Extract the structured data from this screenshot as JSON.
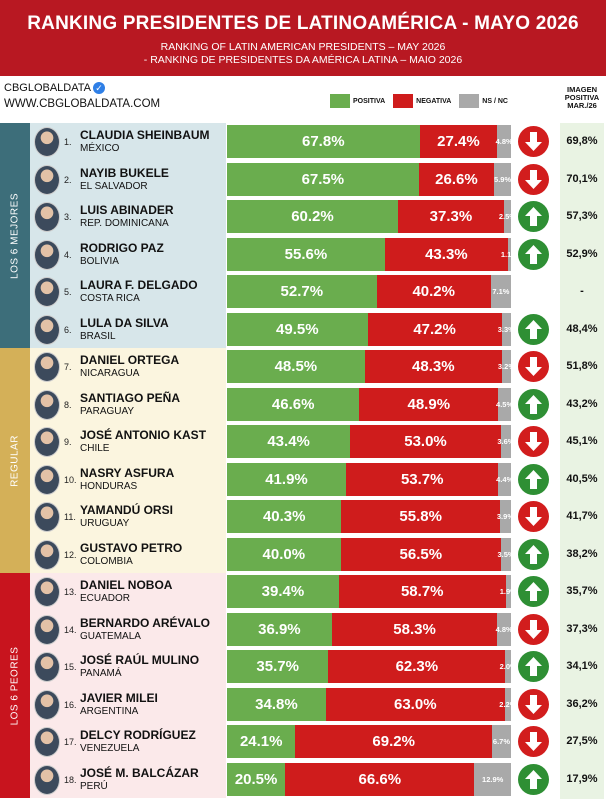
{
  "header": {
    "title": "RANKING PRESIDENTES DE LATINOAMÉRICA - MAYO 2026",
    "subtitle_en": "RANKING OF LATIN AMERICAN PRESIDENTS – MAY 2026",
    "subtitle_pt": "- RANKING DE PRESIDENTES DA AMÉRICA LATINA – MAIO 2026"
  },
  "brand": {
    "handle": "CBGLOBALDATA",
    "url": "WWW.CBGLOBALDATA.COM"
  },
  "legend": {
    "positive": "POSITIVA",
    "negative": "NEGATIVA",
    "ns": "NS / NC"
  },
  "image_column_header": [
    "IMAGEN",
    "POSITIVA",
    "MAR./26"
  ],
  "groups": [
    {
      "label": "LOS 6 MEJORES",
      "color": "#3d6e7a",
      "bg": "#d7e6ea"
    },
    {
      "label": "REGULAR",
      "color": "#d4b058",
      "bg": "#fbf5df"
    },
    {
      "label": "LOS 6 PEORES",
      "color": "#c8141e",
      "bg": "#fbe9ea"
    }
  ],
  "colors": {
    "positive": "#6aad4e",
    "negative": "#cf1c1c",
    "ns": "#a9a9a9",
    "up": "#2e8f34",
    "down": "#d21d1d"
  },
  "chart_data": {
    "type": "bar",
    "stacked": true,
    "orientation": "horizontal",
    "series_names": [
      "POSITIVA",
      "NEGATIVA",
      "NS / NC"
    ],
    "rows": [
      {
        "rank": "1.",
        "name": "CLAUDIA SHEINBAUM",
        "country": "MÉXICO",
        "positive": 67.8,
        "negative": 27.4,
        "ns": 4.8,
        "pos_label": "67.8%",
        "neg_label": "27.4%",
        "ns_label": "4.8%",
        "trend": "down",
        "prev": "69,8%"
      },
      {
        "rank": "2.",
        "name": "NAYIB BUKELE",
        "country": "EL SALVADOR",
        "positive": 67.5,
        "negative": 26.6,
        "ns": 5.9,
        "pos_label": "67.5%",
        "neg_label": "26.6%",
        "ns_label": "5.9%",
        "trend": "down",
        "prev": "70,1%"
      },
      {
        "rank": "3.",
        "name": "LUIS ABINADER",
        "country": "REP. DOMINICANA",
        "positive": 60.2,
        "negative": 37.3,
        "ns": 2.5,
        "pos_label": "60.2%",
        "neg_label": "37.3%",
        "ns_label": "2.5%",
        "trend": "up",
        "prev": "57,3%"
      },
      {
        "rank": "4.",
        "name": "RODRIGO PAZ",
        "country": "BOLIVIA",
        "positive": 55.6,
        "negative": 43.3,
        "ns": 1.1,
        "pos_label": "55.6%",
        "neg_label": "43.3%",
        "ns_label": "1.1%",
        "trend": "up",
        "prev": "52,9%"
      },
      {
        "rank": "5.",
        "name": "LAURA F. DELGADO",
        "country": "COSTA RICA",
        "positive": 52.7,
        "negative": 40.2,
        "ns": 7.1,
        "pos_label": "52.7%",
        "neg_label": "40.2%",
        "ns_label": "7.1%",
        "trend": "none",
        "prev": "-"
      },
      {
        "rank": "6.",
        "name": "LULA DA SILVA",
        "country": "BRASIL",
        "positive": 49.5,
        "negative": 47.2,
        "ns": 3.3,
        "pos_label": "49.5%",
        "neg_label": "47.2%",
        "ns_label": "3.3%",
        "trend": "up",
        "prev": "48,4%"
      },
      {
        "rank": "7.",
        "name": "DANIEL ORTEGA",
        "country": "NICARAGUA",
        "positive": 48.5,
        "negative": 48.3,
        "ns": 3.2,
        "pos_label": "48.5%",
        "neg_label": "48.3%",
        "ns_label": "3.2%",
        "trend": "down",
        "prev": "51,8%"
      },
      {
        "rank": "8.",
        "name": "SANTIAGO PEÑA",
        "country": "PARAGUAY",
        "positive": 46.6,
        "negative": 48.9,
        "ns": 4.5,
        "pos_label": "46.6%",
        "neg_label": "48.9%",
        "ns_label": "4.5%",
        "trend": "up",
        "prev": "43,2%"
      },
      {
        "rank": "9.",
        "name": "JOSÉ ANTONIO KAST",
        "country": "CHILE",
        "positive": 43.4,
        "negative": 53.0,
        "ns": 3.6,
        "pos_label": "43.4%",
        "neg_label": "53.0%",
        "ns_label": "3.6%",
        "trend": "down",
        "prev": "45,1%"
      },
      {
        "rank": "10.",
        "name": "NASRY ASFURA",
        "country": "HONDURAS",
        "positive": 41.9,
        "negative": 53.7,
        "ns": 4.4,
        "pos_label": "41.9%",
        "neg_label": "53.7%",
        "ns_label": "4.4%",
        "trend": "up",
        "prev": "40,5%"
      },
      {
        "rank": "11.",
        "name": "YAMANDÚ ORSI",
        "country": "URUGUAY",
        "positive": 40.3,
        "negative": 55.8,
        "ns": 3.9,
        "pos_label": "40.3%",
        "neg_label": "55.8%",
        "ns_label": "3.9%",
        "trend": "down",
        "prev": "41,7%"
      },
      {
        "rank": "12.",
        "name": "GUSTAVO PETRO",
        "country": "COLOMBIA",
        "positive": 40.0,
        "negative": 56.5,
        "ns": 3.5,
        "pos_label": "40.0%",
        "neg_label": "56.5%",
        "ns_label": "3.5%",
        "trend": "up",
        "prev": "38,2%"
      },
      {
        "rank": "13.",
        "name": "DANIEL NOBOA",
        "country": "ECUADOR",
        "positive": 39.4,
        "negative": 58.7,
        "ns": 1.9,
        "pos_label": "39.4%",
        "neg_label": "58.7%",
        "ns_label": "1.9%",
        "trend": "up",
        "prev": "35,7%"
      },
      {
        "rank": "14.",
        "name": "BERNARDO ARÉVALO",
        "country": "GUATEMALA",
        "positive": 36.9,
        "negative": 58.3,
        "ns": 4.8,
        "pos_label": "36.9%",
        "neg_label": "58.3%",
        "ns_label": "4.8%",
        "trend": "down",
        "prev": "37,3%"
      },
      {
        "rank": "15.",
        "name": "JOSÉ RAÚL MULINO",
        "country": "PANAMÁ",
        "positive": 35.7,
        "negative": 62.3,
        "ns": 2.0,
        "pos_label": "35.7%",
        "neg_label": "62.3%",
        "ns_label": "2.0%",
        "trend": "up",
        "prev": "34,1%"
      },
      {
        "rank": "16.",
        "name": "JAVIER MILEI",
        "country": "ARGENTINA",
        "positive": 34.8,
        "negative": 63.0,
        "ns": 2.2,
        "pos_label": "34.8%",
        "neg_label": "63.0%",
        "ns_label": "2.2%",
        "trend": "down",
        "prev": "36,2%"
      },
      {
        "rank": "17.",
        "name": "DELCY RODRÍGUEZ",
        "country": "VENEZUELA",
        "positive": 24.1,
        "negative": 69.2,
        "ns": 6.7,
        "pos_label": "24.1%",
        "neg_label": "69.2%",
        "ns_label": "6.7%",
        "trend": "down",
        "prev": "27,5%"
      },
      {
        "rank": "18.",
        "name": "JOSÉ M. BALCÁZAR",
        "country": "PERÚ",
        "positive": 20.5,
        "negative": 66.6,
        "ns": 12.9,
        "pos_label": "20.5%",
        "neg_label": "66.6%",
        "ns_label": "12.9%",
        "trend": "up",
        "prev": "17,9%"
      }
    ]
  }
}
